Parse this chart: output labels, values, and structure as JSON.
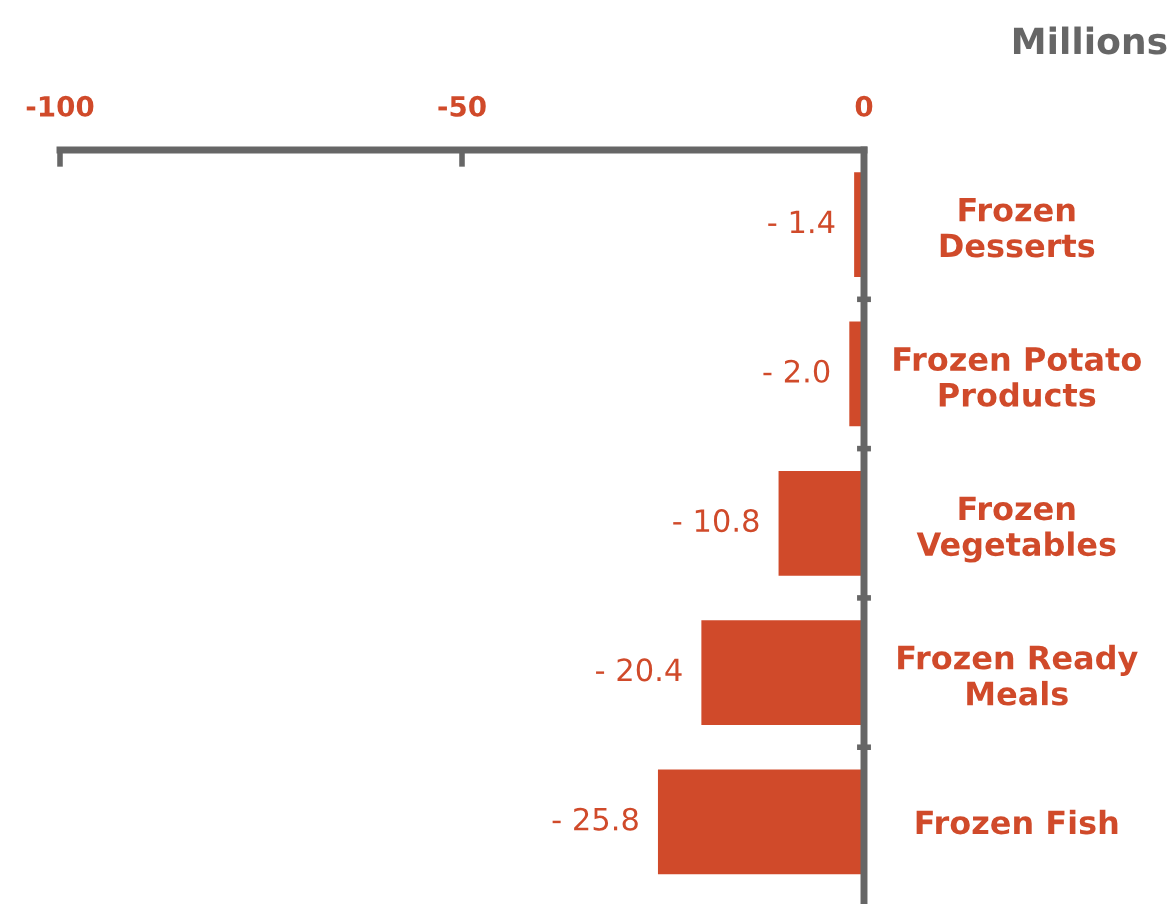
{
  "chart_data": {
    "type": "bar",
    "orientation": "horizontal",
    "xlabel": "Millions",
    "categories": [
      "Frozen\nDesserts",
      "Frozen Potato\nProducts",
      "Frozen\nVegetables",
      "Frozen Ready\nMeals",
      "Frozen Fish"
    ],
    "values": [
      -1.4,
      -2.0,
      -10.8,
      -20.4,
      -25.8
    ],
    "value_labels": [
      "- 1.4",
      "- 2.0",
      "- 10.8",
      "- 20.4",
      "- 25.8"
    ],
    "color": "#d04a2a",
    "xlim": [
      -100,
      0
    ],
    "xticks": [
      -100,
      -50,
      0
    ]
  }
}
